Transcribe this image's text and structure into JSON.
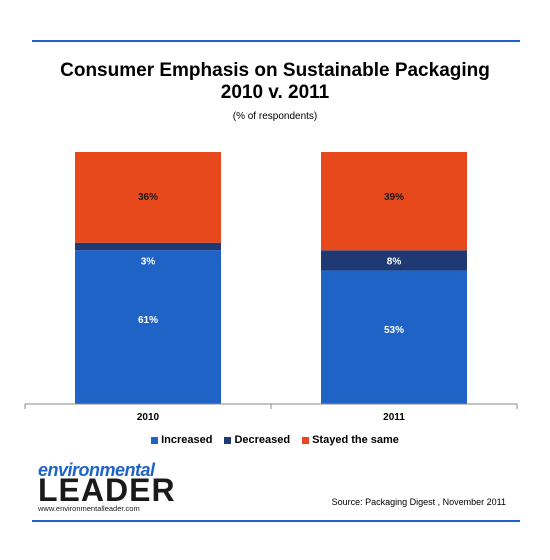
{
  "title_line1": "Consumer Emphasis on Sustainable Packaging",
  "title_line2": "2010 v. 2011",
  "subtitle": "(% of respondents)",
  "source": "Source: Packaging Digest , November 2011",
  "logo": {
    "top": "environmental",
    "main": "LEADER",
    "url": "www.environmentalleader.com"
  },
  "colors": {
    "increased": "#1f63c6",
    "decreased": "#1f3a72",
    "same": "#e8491c",
    "rule": "#1f63c6"
  },
  "chart_data": {
    "type": "bar",
    "stacked": true,
    "categories": [
      "2010",
      "2011"
    ],
    "series": [
      {
        "name": "Increased",
        "values": [
          61,
          53
        ],
        "labels": [
          "61%",
          "53%"
        ]
      },
      {
        "name": "Decreased",
        "values": [
          3,
          8
        ],
        "labels": [
          "3%",
          "8%"
        ]
      },
      {
        "name": "Stayed the same",
        "values": [
          36,
          39
        ],
        "labels": [
          "36%",
          "39%"
        ]
      }
    ],
    "ylim": [
      0,
      100
    ],
    "grid": false,
    "legend": "bottom"
  }
}
